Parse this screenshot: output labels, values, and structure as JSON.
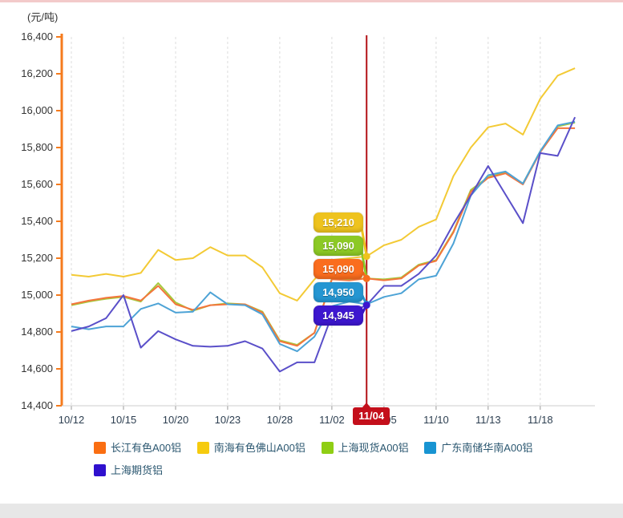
{
  "page": {
    "top_strip_color": "#f3caca",
    "bottom_strip_color": "#e7e7e7"
  },
  "chart_data": {
    "type": "line",
    "title": "",
    "unit_label": "(元/吨)",
    "categories": [
      "10/12",
      "10/13",
      "10/14",
      "10/15",
      "10/16",
      "10/19",
      "10/20",
      "10/21",
      "10/22",
      "10/23",
      "10/26",
      "10/27",
      "10/28",
      "10/29",
      "10/30",
      "11/02",
      "11/03",
      "11/04",
      "11/05",
      "11/06",
      "11/09",
      "11/10",
      "11/11",
      "11/12",
      "11/13",
      "11/16",
      "11/17",
      "11/18",
      "11/19",
      "11/20"
    ],
    "labeled_tick_indices": [
      0,
      3,
      6,
      9,
      12,
      15,
      18,
      21,
      24,
      27
    ],
    "x_axis_labels": [
      "10/12",
      "10/15",
      "10/20",
      "10/23",
      "10/28",
      "11/02",
      "11/05",
      "11/10",
      "11/13",
      "11/18"
    ],
    "ylim": [
      14400,
      16400
    ],
    "y_tick_step": 200,
    "y_tick_labels": [
      "16,400",
      "16,200",
      "16,000",
      "15,800",
      "15,600",
      "15,400",
      "15,200",
      "15,000",
      "14,800",
      "14,600",
      "14,400"
    ],
    "grid": "vertical-dashed",
    "grid_color": "#dddddd",
    "x_axis_color": "#cccccc",
    "y_axis_color": "#f57b1d",
    "x_label_color": "#2c3e50",
    "y_label_color": "#333333",
    "legend_position": "bottom-left",
    "z_order": [
      1,
      2,
      0,
      3,
      4
    ],
    "series": [
      {
        "key": "changjiang-a00",
        "name": "长江有色A00铝",
        "color": "#f4753c",
        "swatch": "#fa6e12",
        "values": [
          14950,
          14970,
          14985,
          14995,
          14970,
          15050,
          14950,
          14920,
          14945,
          14950,
          14950,
          14905,
          14750,
          14725,
          14795,
          15085,
          15080,
          15090,
          15080,
          15090,
          15160,
          15185,
          15340,
          15560,
          15635,
          15660,
          15600,
          15775,
          15905,
          15905
        ]
      },
      {
        "key": "nanhai-foshan-a00",
        "name": "南海有色佛山A00铝",
        "color": "#f3ca35",
        "swatch": "#f6cb0e",
        "values": [
          15110,
          15100,
          15115,
          15100,
          15120,
          15245,
          15190,
          15200,
          15260,
          15215,
          15215,
          15150,
          15010,
          14970,
          15085,
          15190,
          15200,
          15210,
          15270,
          15300,
          15370,
          15410,
          15645,
          15800,
          15910,
          15930,
          15870,
          16065,
          16190,
          16230
        ]
      },
      {
        "key": "shanghai-spot-a00",
        "name": "上海现货A00铝",
        "color": "#a6c93d",
        "swatch": "#8fce14",
        "values": [
          14945,
          14965,
          14980,
          14990,
          14965,
          15065,
          14960,
          14915,
          14945,
          14955,
          14950,
          14910,
          14755,
          14730,
          14795,
          15090,
          15085,
          15090,
          15085,
          15095,
          15165,
          15190,
          15345,
          15570,
          15640,
          15665,
          15605,
          15780,
          15915,
          15935
        ]
      },
      {
        "key": "guangdong-nanchu-a00",
        "name": "广东南储华南A00铝",
        "color": "#4da3d6",
        "swatch": "#1894d2",
        "values": [
          14830,
          14815,
          14830,
          14830,
          14925,
          14955,
          14905,
          14910,
          15015,
          14950,
          14945,
          14895,
          14735,
          14695,
          14775,
          14940,
          14965,
          14950,
          14990,
          15010,
          15085,
          15105,
          15280,
          15540,
          15650,
          15670,
          15605,
          15780,
          15920,
          15940
        ]
      },
      {
        "key": "shanghai-futures",
        "name": "上海期货铝",
        "color": "#5a4fc9",
        "swatch": "#2f10ce",
        "values": [
          14805,
          14830,
          14875,
          15000,
          14715,
          14805,
          14760,
          14725,
          14720,
          14725,
          14750,
          14710,
          14585,
          14635,
          14635,
          14890,
          14905,
          14945,
          15050,
          15050,
          15115,
          15215,
          15385,
          15540,
          15700,
          15545,
          15390,
          15770,
          15755,
          15965
        ]
      }
    ],
    "highlight": {
      "category": "11/04",
      "index": 17,
      "line_color": "#b31217",
      "box_color": "#c40f1b",
      "tooltips": [
        {
          "key": "nanhai",
          "series": "南海有色佛山A00铝",
          "label": "15,210",
          "value": 15210,
          "color": "#eec31e"
        },
        {
          "key": "shanghai-spot",
          "series": "上海现货A00铝",
          "label": "15,090",
          "value": 15090,
          "color": "#8cc925"
        },
        {
          "key": "changjiang",
          "series": "长江有色A00铝",
          "label": "15,090",
          "value": 15090,
          "color": "#fa6d1e"
        },
        {
          "key": "guangdong",
          "series": "广东南储华南A00铝",
          "label": "14,950",
          "value": 14950,
          "color": "#2596d2"
        },
        {
          "key": "shanghai-futures",
          "series": "上海期货铝",
          "label": "14,945",
          "value": 14945,
          "color": "#3d17cf"
        }
      ]
    }
  }
}
